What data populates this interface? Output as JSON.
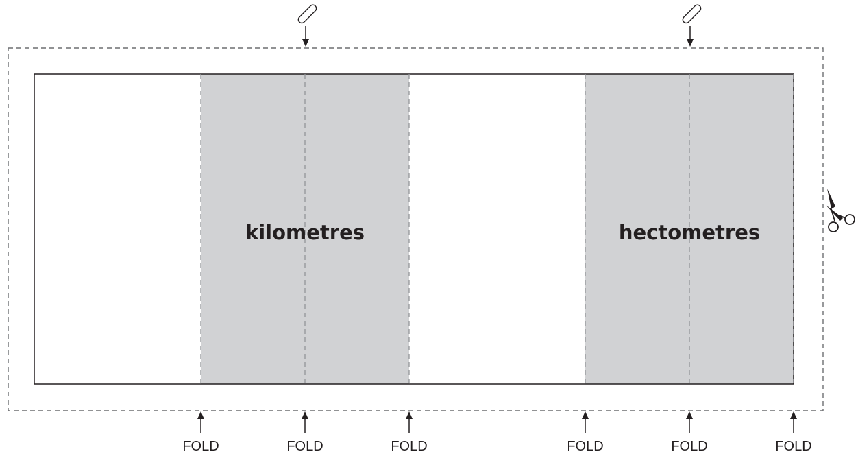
{
  "panels": [
    {
      "label": "kilometres",
      "shade": "#d1d2d4"
    },
    {
      "label": "hectometres",
      "shade": "#d1d2d4"
    }
  ],
  "fold_label": "FOLD",
  "fold_count": 6,
  "colors": {
    "outline": "#231f20",
    "cut_line": "#6d6e71",
    "fold_line": "#939598",
    "shade": "#d1d2d4"
  },
  "icons": {
    "attach": "paperclip-icon",
    "cut": "scissors-icon",
    "fold_marker": "arrow-up-icon",
    "attach_marker": "arrow-down-icon"
  }
}
